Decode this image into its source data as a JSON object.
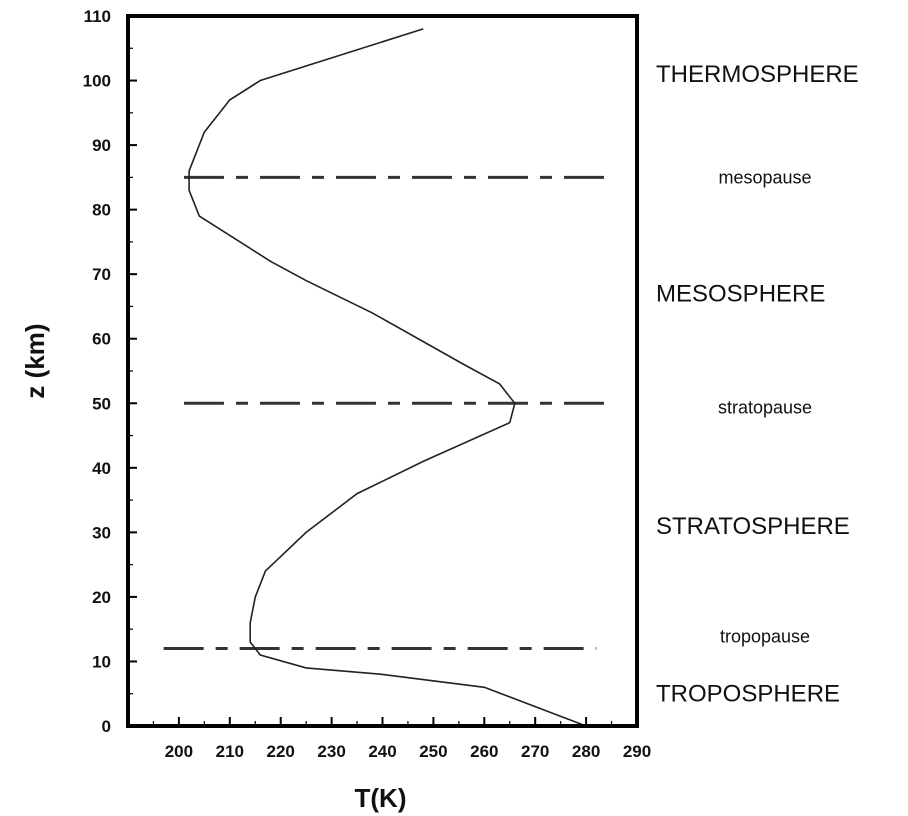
{
  "chart_data": {
    "type": "line",
    "title": "",
    "xlabel": "T(K)",
    "ylabel": "z (km)",
    "xlim": [
      190,
      290
    ],
    "ylim": [
      0,
      110
    ],
    "grid": false,
    "x_ticks": [
      200,
      210,
      220,
      230,
      240,
      250,
      260,
      270,
      280,
      290
    ],
    "y_ticks": [
      0,
      10,
      20,
      30,
      40,
      50,
      60,
      70,
      80,
      90,
      100,
      110
    ],
    "series": [
      {
        "points": [
          {
            "T": 280,
            "z": 0
          },
          {
            "T": 270,
            "z": 3
          },
          {
            "T": 260,
            "z": 6
          },
          {
            "T": 240,
            "z": 8
          },
          {
            "T": 225,
            "z": 9
          },
          {
            "T": 216,
            "z": 11
          },
          {
            "T": 214,
            "z": 13
          },
          {
            "T": 214,
            "z": 16
          },
          {
            "T": 215,
            "z": 20
          },
          {
            "T": 217,
            "z": 24
          },
          {
            "T": 225,
            "z": 30
          },
          {
            "T": 235,
            "z": 36
          },
          {
            "T": 248,
            "z": 41
          },
          {
            "T": 265,
            "z": 47
          },
          {
            "T": 266,
            "z": 50
          },
          {
            "T": 263,
            "z": 53
          },
          {
            "T": 256,
            "z": 56
          },
          {
            "T": 238,
            "z": 64
          },
          {
            "T": 225,
            "z": 69
          },
          {
            "T": 218,
            "z": 72
          },
          {
            "T": 204,
            "z": 79
          },
          {
            "T": 202,
            "z": 83
          },
          {
            "T": 202,
            "z": 86
          },
          {
            "T": 205,
            "z": 92
          },
          {
            "T": 210,
            "z": 97
          },
          {
            "T": 216,
            "z": 100
          },
          {
            "T": 248,
            "z": 108
          }
        ]
      }
    ],
    "boundaries": [
      {
        "label": "mesopause",
        "z": 85,
        "T_range": [
          201,
          285
        ]
      },
      {
        "label": "stratopause",
        "z": 50,
        "T_range": [
          201,
          285
        ]
      },
      {
        "label": "tropopause",
        "z": 12,
        "T_range": [
          197,
          282
        ]
      }
    ],
    "layers": [
      {
        "label": "THERMOSPHERE",
        "z": 101
      },
      {
        "label": "MESOSPHERE",
        "z": 67
      },
      {
        "label": "STRATOSPHERE",
        "z": 31
      },
      {
        "label": "TROPOSPHERE",
        "z": 5
      }
    ]
  }
}
